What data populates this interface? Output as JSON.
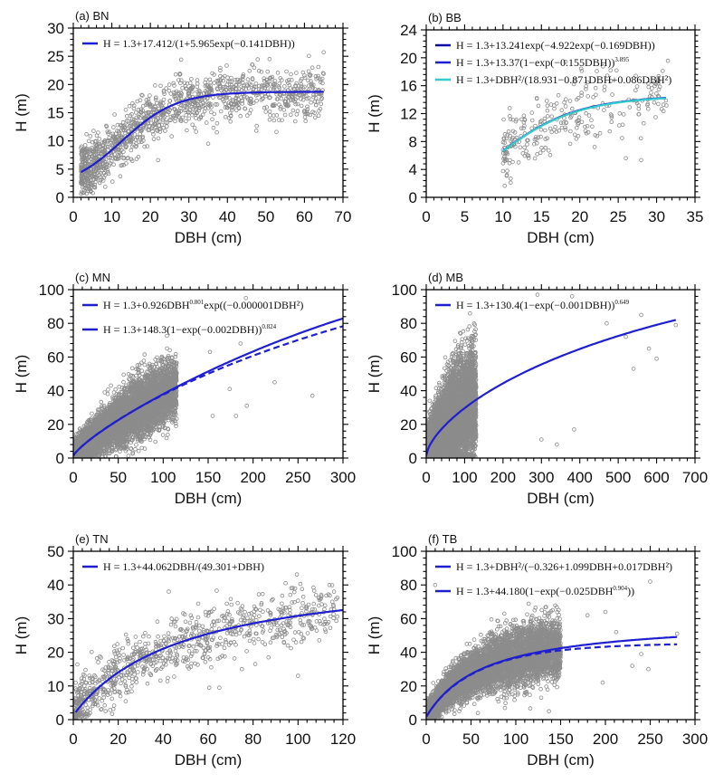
{
  "figure": {
    "xlabel": "DBH (cm)",
    "ylabel": "H (m)"
  },
  "colors": {
    "points": "#8c8c8c",
    "curve_blue": "#1f1fd0",
    "curve_navy": "#0a0aa8",
    "curve_cyan": "#33cccc",
    "axis": "#000000"
  },
  "chart_data": [
    {
      "id": "a",
      "type": "scatter",
      "title": "(a) BN",
      "xlabel": "DBH (cm)",
      "ylabel": "H (m)",
      "xlim": [
        0,
        70
      ],
      "ylim": [
        0,
        30
      ],
      "xticks": [
        0,
        10,
        20,
        30,
        40,
        50,
        60,
        70
      ],
      "yticks": [
        0,
        5,
        10,
        15,
        20,
        25,
        30
      ],
      "legend_position": "top-left",
      "curves": [
        {
          "label": "H = 1.3+17.412/(1+5.965exp(−0.141DBH))",
          "model": "logistic",
          "params": {
            "a": 17.412,
            "b": 5.965,
            "c": 0.141
          },
          "x_range": [
            2,
            65
          ],
          "color_key": "curve_blue",
          "dash": false
        }
      ],
      "points_synthetic": {
        "note": "illustrative only; individual points not read from image",
        "n": 1300,
        "x_range": [
          2,
          65
        ],
        "x_dist": "skewed-low",
        "spread": 2.3,
        "outliers": [
          [
            65,
            25.7
          ],
          [
            65,
            21.9
          ],
          [
            60,
            21.6
          ],
          [
            60,
            15.1
          ],
          [
            55,
            14.6
          ],
          [
            52,
            14.5
          ],
          [
            28,
            24.4
          ],
          [
            35,
            9.5
          ],
          [
            22,
            6.6
          ]
        ]
      }
    },
    {
      "id": "b",
      "type": "scatter",
      "title": "(b) BB",
      "xlabel": "DBH (cm)",
      "ylabel": "H (m)",
      "xlim": [
        0,
        35
      ],
      "ylim": [
        0,
        24
      ],
      "xticks": [
        0,
        5,
        10,
        15,
        20,
        25,
        30,
        35
      ],
      "yticks": [
        0,
        4,
        8,
        12,
        16,
        20,
        24
      ],
      "legend_position": "top-left",
      "curves": [
        {
          "label": "H = 1.3+13.241exp(−4.922exp(−0.169DBH))",
          "model": "gompertz",
          "params": {
            "a": 13.241,
            "b": 4.922,
            "c": 0.169
          },
          "x_range": [
            10,
            31.2
          ],
          "color_key": "curve_navy",
          "dash": false
        },
        {
          "label": "H = 1.3+13.37(1−exp(−0.155DBH))",
          "label_sup": "3.895",
          "model": "richards",
          "params": {
            "a": 13.37,
            "b": 0.155,
            "c": 3.895
          },
          "x_range": [
            10,
            31.2
          ],
          "color_key": "curve_blue",
          "dash": true
        },
        {
          "label": "H = 1.3+DBH²/(18.931−0.871DBH+0.086DBH²)",
          "model": "rational",
          "params": {
            "a": 18.931,
            "b": -0.871,
            "c": 0.086
          },
          "x_range": [
            10,
            31.2
          ],
          "color_key": "curve_cyan",
          "dash": false
        }
      ],
      "points_synthetic": {
        "note": "illustrative only; individual points not read from image",
        "n": 260,
        "x_range": [
          10,
          31.5
        ],
        "x_dist": "skewed-low",
        "spread": 2.4,
        "outliers": [
          [
            11,
            2.1
          ],
          [
            11,
            2.7
          ],
          [
            26,
            5.6
          ],
          [
            25.5,
            8.5
          ],
          [
            24,
            18.2
          ],
          [
            27.7,
            11.9
          ]
        ]
      }
    },
    {
      "id": "c",
      "type": "scatter",
      "title": "(c) MN",
      "xlabel": "DBH (cm)",
      "ylabel": "H (m)",
      "xlim": [
        0,
        300
      ],
      "ylim": [
        0,
        100
      ],
      "xticks": [
        0,
        50,
        100,
        150,
        200,
        250,
        300
      ],
      "yticks": [
        0,
        20,
        40,
        60,
        80,
        100
      ],
      "legend_position": "top-left",
      "curves": [
        {
          "label": "H = 1.3+0.926DBH",
          "label_sup": "0.801",
          "label_tail": "exp((−0.000001DBH²)",
          "model": "power-exp",
          "params": {
            "a": 0.926,
            "b": 0.801,
            "c": 1e-06
          },
          "x_range": [
            0,
            300
          ],
          "color_key": "curve_blue",
          "dash": false
        },
        {
          "label": "H = 1.3+148.3(1−exp(−0.002DBH))",
          "label_sup": "0.824",
          "model": "richards",
          "params": {
            "a": 148.3,
            "b": 0.002,
            "c": 0.824
          },
          "x_range": [
            0,
            300
          ],
          "color_key": "curve_blue",
          "dash": true
        }
      ],
      "points_synthetic": {
        "note": "illustrative only; individual points not read from image",
        "n": 7000,
        "x_range": [
          0.5,
          115
        ],
        "x_dist": "dense-low",
        "spread": 9,
        "outliers": [
          [
            192,
            95
          ],
          [
            186,
            68
          ],
          [
            152,
            63
          ],
          [
            224,
            45
          ],
          [
            266,
            37
          ],
          [
            193,
            31
          ],
          [
            181,
            25
          ],
          [
            174,
            41
          ],
          [
            155,
            25
          ]
        ]
      }
    },
    {
      "id": "d",
      "type": "scatter",
      "title": "(d) MB",
      "xlabel": "DBH (cm)",
      "ylabel": "H (m)",
      "xlim": [
        0,
        700
      ],
      "ylim": [
        0,
        100
      ],
      "xticks": [
        0,
        100,
        200,
        300,
        400,
        500,
        600,
        700
      ],
      "yticks": [
        0,
        20,
        40,
        60,
        80,
        100
      ],
      "legend_position": "top-left",
      "curves": [
        {
          "label": "H = 1.3+130.4(1−exp(−0.001DBH))",
          "label_sup": "0.649",
          "model": "richards",
          "params": {
            "a": 130.4,
            "b": 0.001,
            "c": 0.649
          },
          "x_range": [
            0,
            650
          ],
          "color_key": "curve_blue",
          "dash": false
        }
      ],
      "points_synthetic": {
        "note": "illustrative only; individual points not read from image",
        "n": 7000,
        "x_range": [
          0.5,
          130
        ],
        "x_dist": "dense-low",
        "spread": 16,
        "outliers": [
          [
            290,
            97
          ],
          [
            380,
            96
          ],
          [
            560,
            85
          ],
          [
            650,
            79
          ],
          [
            540,
            53
          ],
          [
            600,
            59
          ],
          [
            385,
            17
          ],
          [
            340,
            8
          ],
          [
            300,
            11
          ],
          [
            470,
            80
          ],
          [
            520,
            72
          ],
          [
            580,
            65
          ]
        ]
      }
    },
    {
      "id": "e",
      "type": "scatter",
      "title": "(e) TN",
      "xlabel": "DBH (cm)",
      "ylabel": "H (m)",
      "xlim": [
        0,
        120
      ],
      "ylim": [
        0,
        50
      ],
      "xticks": [
        0,
        20,
        40,
        60,
        80,
        100,
        120
      ],
      "yticks": [
        0,
        10,
        20,
        30,
        40,
        50
      ],
      "legend_position": "top-left",
      "curves": [
        {
          "label": "H = 1.3+44.062DBH/(49.301+DBH)",
          "model": "michaelis-menten",
          "params": {
            "a": 44.062,
            "b": 49.301
          },
          "x_range": [
            1,
            120
          ],
          "color_key": "curve_blue",
          "dash": false
        }
      ],
      "points_synthetic": {
        "note": "illustrative only; individual points not read from image",
        "n": 900,
        "x_range": [
          1,
          118
        ],
        "x_dist": "skewed-low",
        "spread": 4.2,
        "outliers": [
          [
            114,
            40
          ],
          [
            116,
            38
          ],
          [
            108,
            37
          ],
          [
            100,
            13
          ],
          [
            42.5,
            38
          ],
          [
            60.5,
            9.5
          ],
          [
            65,
            9.5
          ],
          [
            75,
            15
          ],
          [
            81,
            16.5
          ]
        ]
      }
    },
    {
      "id": "f",
      "type": "scatter",
      "title": "(f) TB",
      "xlabel": "DBH (cm)",
      "ylabel": "H (m)",
      "xlim": [
        0,
        300
      ],
      "ylim": [
        0,
        100
      ],
      "xticks": [
        0,
        50,
        100,
        150,
        200,
        250,
        300
      ],
      "yticks": [
        0,
        20,
        40,
        60,
        80,
        100
      ],
      "legend_position": "top-left",
      "curves": [
        {
          "label": "H = 1.3+DBH²/(−0.326+1.099DBH+0.017DBH²)",
          "model": "rational",
          "params": {
            "a": -0.326,
            "b": 1.099,
            "c": 0.017
          },
          "x_range": [
            0.5,
            280
          ],
          "color_key": "curve_blue",
          "dash": false
        },
        {
          "label": "H = 1.3+44.180(1−exp(−0.025DBH",
          "label_sup": "0.904",
          "label_tail": "))",
          "model": "weibull",
          "params": {
            "a": 44.18,
            "b": 0.025,
            "c": 0.904
          },
          "x_range": [
            0.5,
            280
          ],
          "color_key": "curve_blue",
          "dash": true
        }
      ],
      "points_synthetic": {
        "note": "illustrative only; individual points not read from image",
        "n": 7000,
        "x_range": [
          0.5,
          150
        ],
        "x_dist": "dense-low",
        "spread": 9,
        "outliers": [
          [
            250,
            82
          ],
          [
            10,
            80
          ],
          [
            200,
            64
          ],
          [
            180,
            62
          ],
          [
            248,
            30
          ],
          [
            230,
            32
          ],
          [
            197,
            22
          ],
          [
            137,
            5
          ],
          [
            240,
            39
          ],
          [
            280,
            51
          ],
          [
            212,
            52
          ]
        ]
      }
    }
  ]
}
